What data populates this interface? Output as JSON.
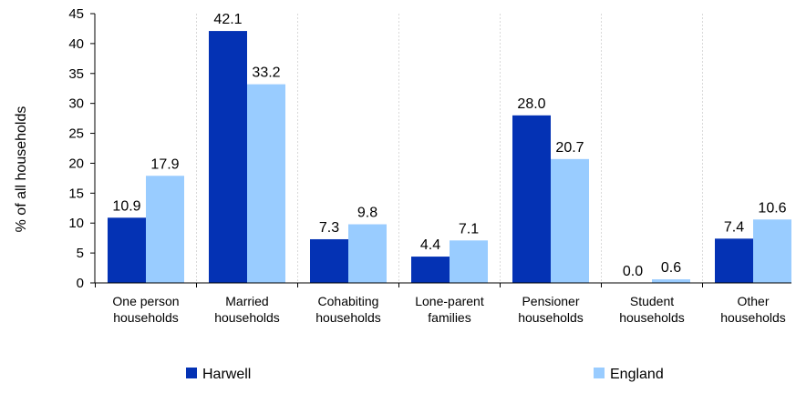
{
  "chart_data": {
    "type": "bar",
    "categories": [
      [
        "One person",
        "households"
      ],
      [
        "Married",
        "households"
      ],
      [
        "Cohabiting",
        "households"
      ],
      [
        "Lone-parent",
        "families"
      ],
      [
        "Pensioner",
        "households"
      ],
      [
        "Student",
        "households"
      ],
      [
        "Other",
        "households"
      ]
    ],
    "series": [
      {
        "name": "Harwell",
        "color": "#0432b4",
        "values": [
          10.9,
          42.1,
          7.3,
          4.4,
          28.0,
          0.0,
          7.4
        ],
        "labels": [
          "10.9",
          "42.1",
          "7.3",
          "4.4",
          "28.0",
          "0.0",
          "7.4"
        ]
      },
      {
        "name": "England",
        "color": "#99ccff",
        "values": [
          17.9,
          33.2,
          9.8,
          7.1,
          20.7,
          0.6,
          10.6
        ],
        "labels": [
          "17.9",
          "33.2",
          "9.8",
          "7.1",
          "20.7",
          "0.6",
          "10.6"
        ]
      }
    ],
    "title": "",
    "xlabel": "",
    "ylabel": "% of all households",
    "ylim": [
      0,
      45
    ],
    "yticks": [
      0,
      5,
      10,
      15,
      20,
      25,
      30,
      35,
      40,
      45
    ],
    "grid": "vertical-dashed",
    "legend": "bottom"
  }
}
